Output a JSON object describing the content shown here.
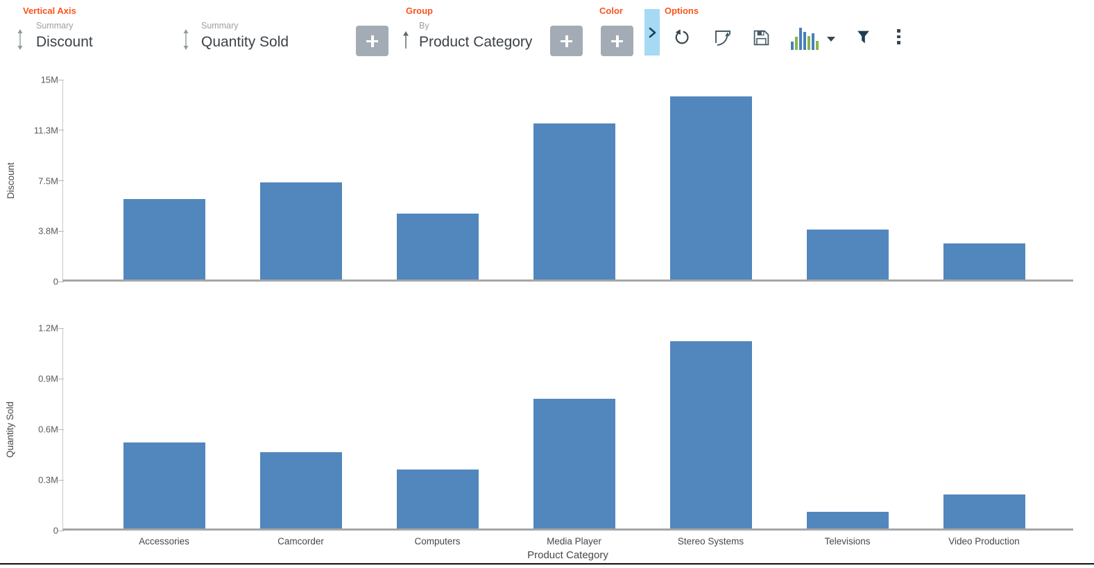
{
  "header": {
    "sections": {
      "vertical_axis": "Vertical Axis",
      "group": "Group",
      "color": "Color",
      "options": "Options"
    },
    "fields": {
      "discount": {
        "role": "Summary",
        "value": "Discount"
      },
      "quantity_sold": {
        "role": "Summary",
        "value": "Quantity Sold"
      },
      "product_category": {
        "role": "By",
        "value": "Product Category"
      }
    },
    "toolbar_icons": [
      "undo-icon",
      "corner-arrow-icon",
      "save-icon",
      "chart-type-icon",
      "chart-type-caret-icon",
      "filter-icon",
      "more-options-icon"
    ]
  },
  "colors": {
    "accent_orange": "#fa541c",
    "bar_blue": "#5187bd",
    "plus_button_gray": "#a3acb4",
    "expander_blue": "#a6d9f4"
  },
  "chart_data": {
    "type": "bar",
    "categories": [
      "Accessories",
      "Camcorder",
      "Computers",
      "Media Player",
      "Stereo Systems",
      "Televisions",
      "Video Production"
    ],
    "xlabel": "Product Category",
    "grid": "off",
    "legend": "none",
    "bar_color": "#5187bd",
    "panels": [
      {
        "name": "Discount",
        "ylabel": "Discount",
        "ylim": [
          0,
          15000000
        ],
        "yticks": [
          {
            "value": 0,
            "label": "0"
          },
          {
            "value": 3750000,
            "label": "3.8M"
          },
          {
            "value": 7500000,
            "label": "7.5M"
          },
          {
            "value": 11250000,
            "label": "11.3M"
          },
          {
            "value": 15000000,
            "label": "15M"
          }
        ],
        "values": [
          6000000,
          7200000,
          4900000,
          11600000,
          13600000,
          3700000,
          2700000
        ]
      },
      {
        "name": "Quantity Sold",
        "ylabel": "Quantity Sold",
        "ylim": [
          0,
          1200000
        ],
        "yticks": [
          {
            "value": 0,
            "label": "0"
          },
          {
            "value": 300000,
            "label": "0.3M"
          },
          {
            "value": 600000,
            "label": "0.6M"
          },
          {
            "value": 900000,
            "label": "0.9M"
          },
          {
            "value": 1200000,
            "label": "1.2M"
          }
        ],
        "values": [
          510000,
          450000,
          350000,
          770000,
          1110000,
          100000,
          200000
        ]
      }
    ]
  }
}
